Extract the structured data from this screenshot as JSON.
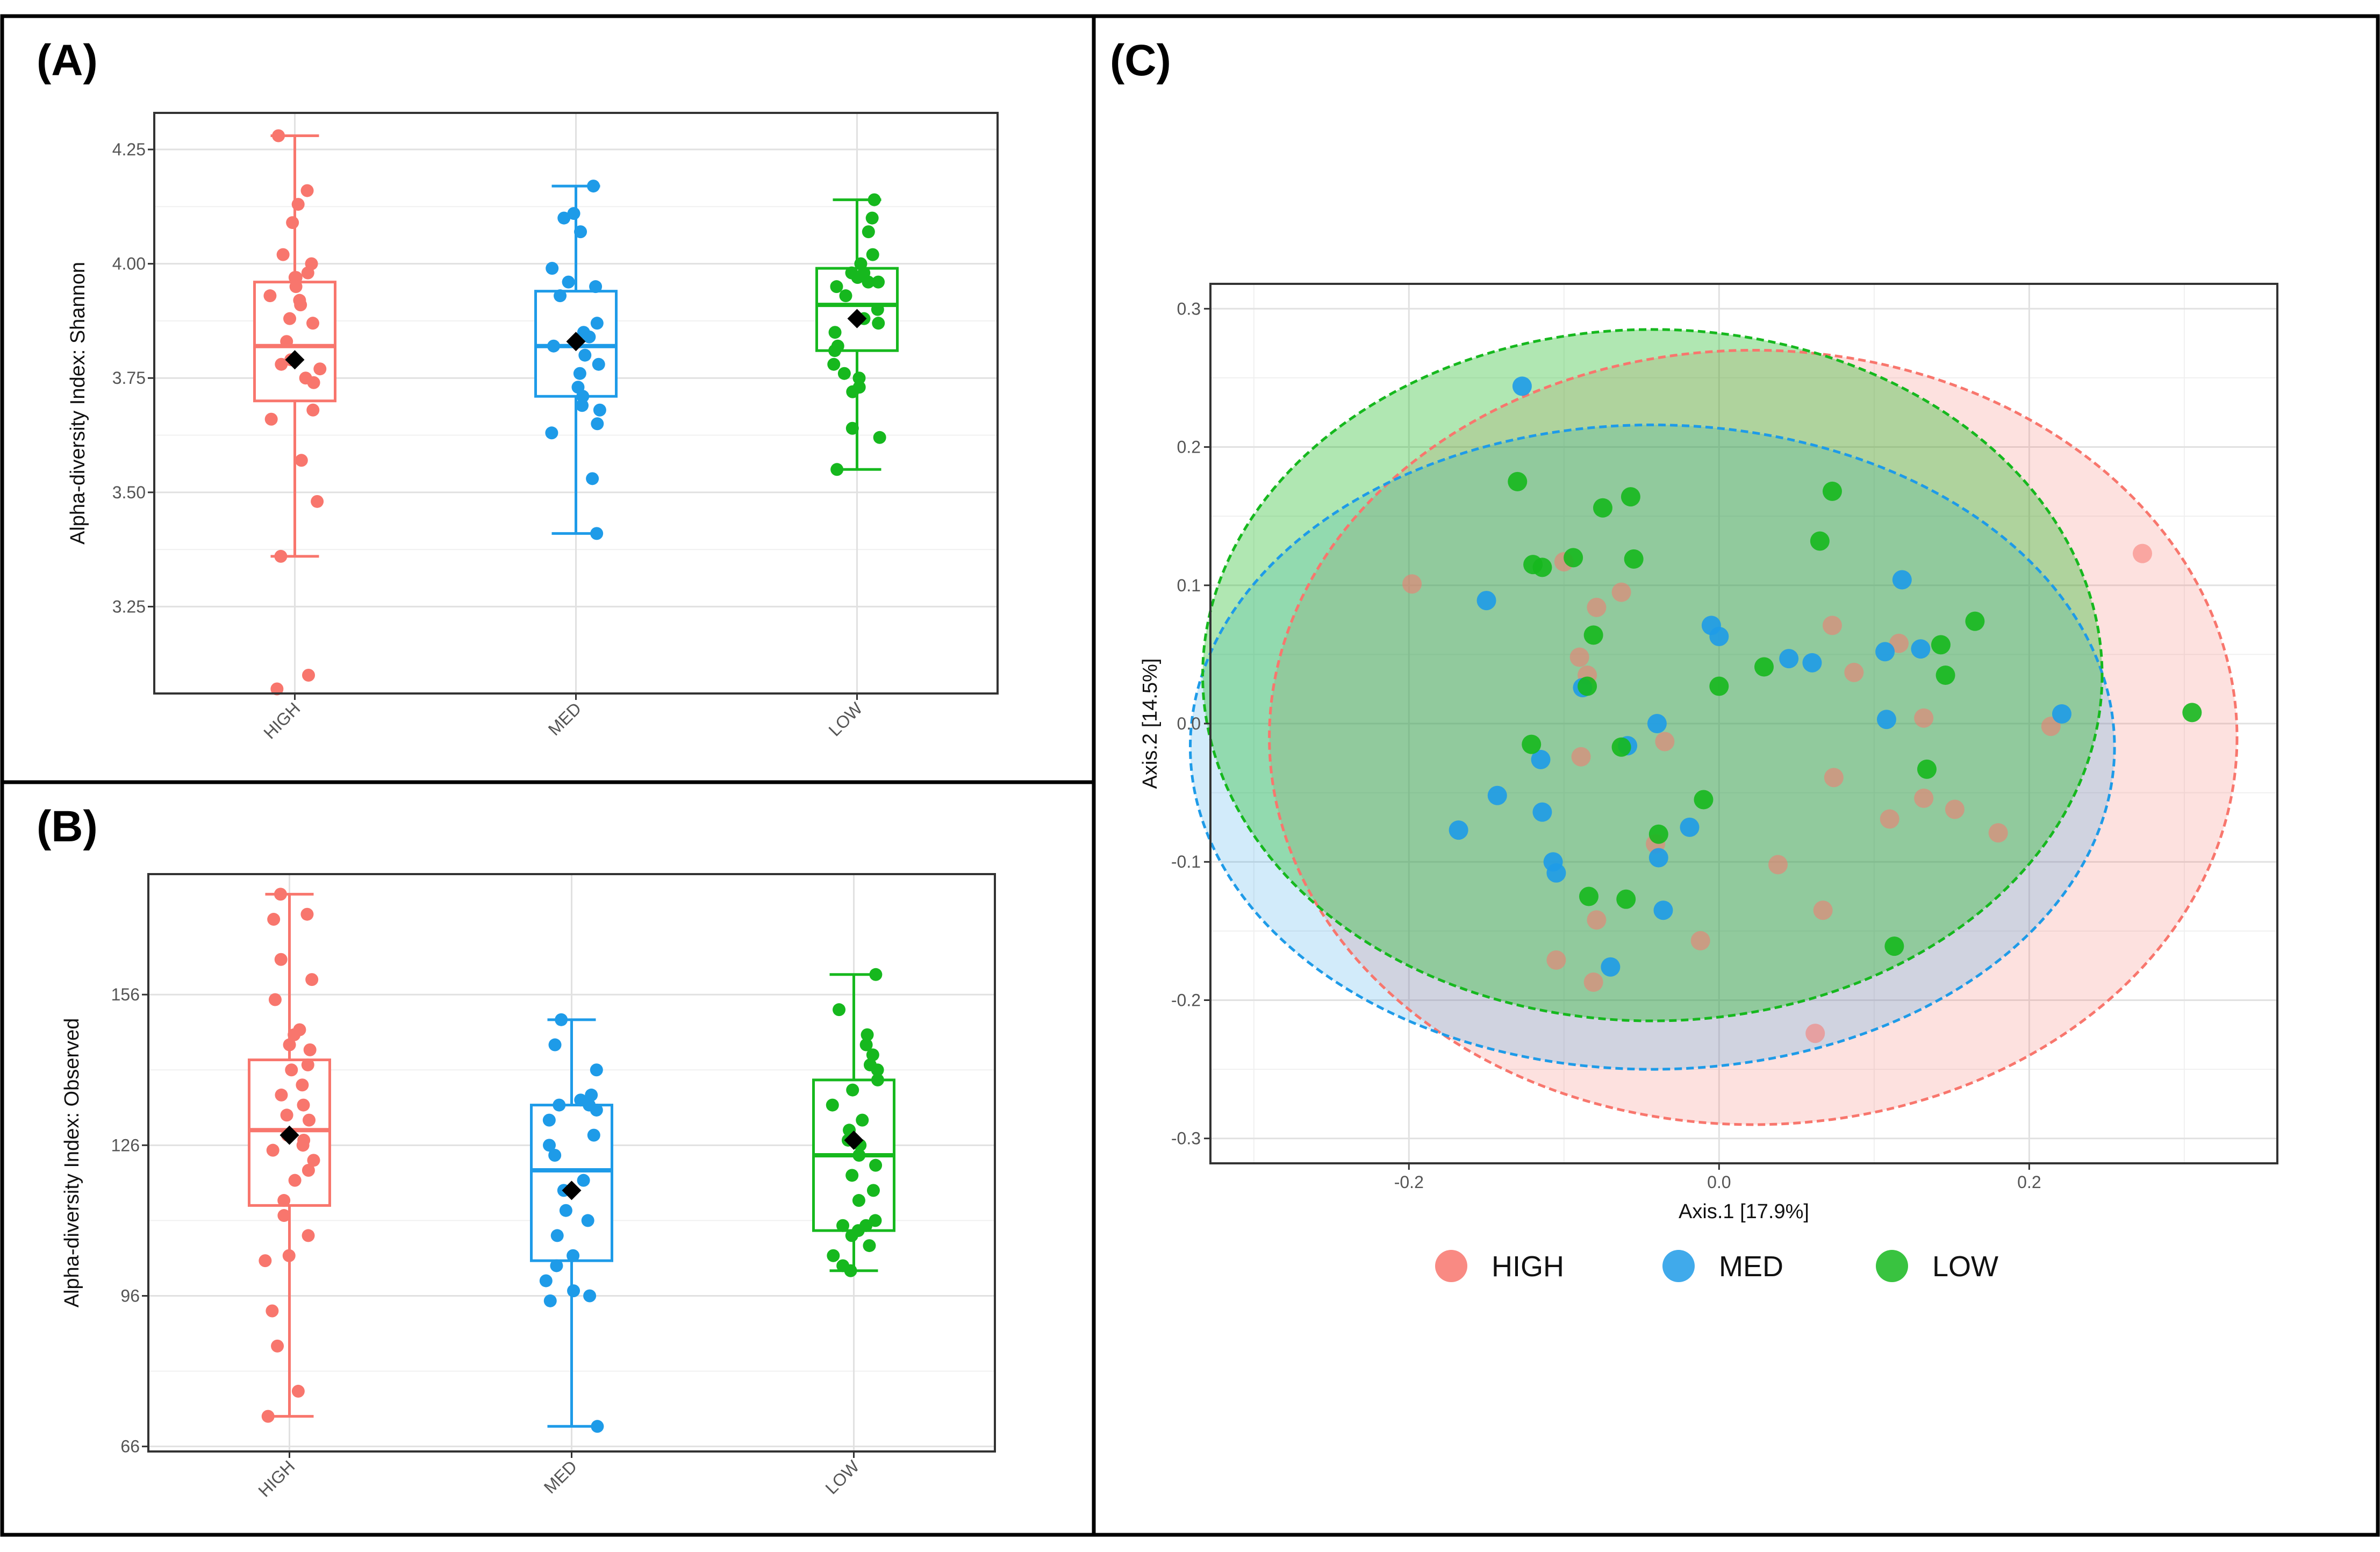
{
  "panels": {
    "a": "(A)",
    "b": "(B)",
    "c": "(C)"
  },
  "colors": {
    "high": "#F8766D",
    "med": "#1E9BE8",
    "low": "#16B81E",
    "mean_marker": "#000000"
  },
  "chart_data": [
    {
      "id": "A",
      "type": "box",
      "ylabel": "Alpha-diversity Index: Shannon",
      "ylim": [
        3.06,
        4.33
      ],
      "yticks": [
        3.25,
        3.5,
        3.75,
        4.0,
        4.25
      ],
      "ytick_labels": [
        "3.25",
        "3.50",
        "3.75",
        "4.00",
        "4.25"
      ],
      "categories": [
        "HIGH",
        "MED",
        "LOW"
      ],
      "series": [
        {
          "name": "HIGH",
          "color_key": "high",
          "q1": 3.7,
          "median": 3.82,
          "q3": 3.96,
          "whisker_low": 3.36,
          "whisker_high": 4.28,
          "mean": 3.79,
          "points": [
            4.28,
            4.16,
            4.13,
            4.09,
            4.02,
            4.0,
            3.98,
            3.97,
            3.97,
            3.95,
            3.93,
            3.92,
            3.91,
            3.88,
            3.87,
            3.83,
            3.79,
            3.78,
            3.77,
            3.75,
            3.74,
            3.68,
            3.66,
            3.57,
            3.48,
            3.36,
            3.1,
            3.07
          ]
        },
        {
          "name": "MED",
          "color_key": "med",
          "q1": 3.71,
          "median": 3.82,
          "q3": 3.94,
          "whisker_low": 3.41,
          "whisker_high": 4.17,
          "mean": 3.83,
          "points": [
            4.17,
            4.11,
            4.1,
            4.07,
            3.99,
            3.96,
            3.95,
            3.93,
            3.87,
            3.85,
            3.84,
            3.82,
            3.8,
            3.78,
            3.76,
            3.73,
            3.71,
            3.69,
            3.68,
            3.65,
            3.63,
            3.53,
            3.41
          ]
        },
        {
          "name": "LOW",
          "color_key": "low",
          "q1": 3.81,
          "median": 3.91,
          "q3": 3.99,
          "whisker_low": 3.55,
          "whisker_high": 4.14,
          "mean": 3.88,
          "points": [
            4.14,
            4.1,
            4.07,
            4.02,
            4.0,
            3.98,
            3.98,
            3.97,
            3.96,
            3.96,
            3.95,
            3.93,
            3.9,
            3.88,
            3.87,
            3.85,
            3.82,
            3.81,
            3.78,
            3.76,
            3.75,
            3.73,
            3.72,
            3.64,
            3.62,
            3.55
          ]
        }
      ]
    },
    {
      "id": "B",
      "type": "box",
      "ylabel": "Alpha-diversity Index: Observed",
      "ylim": [
        65,
        180
      ],
      "yticks": [
        66,
        96,
        126,
        156
      ],
      "ytick_labels": [
        "66",
        "96",
        "126",
        "156"
      ],
      "categories": [
        "HIGH",
        "MED",
        "LOW"
      ],
      "series": [
        {
          "name": "HIGH",
          "color_key": "high",
          "q1": 114,
          "median": 129,
          "q3": 143,
          "whisker_low": 72,
          "whisker_high": 176,
          "mean": 128,
          "points": [
            176,
            172,
            171,
            163,
            159,
            155,
            149,
            148,
            146,
            145,
            142,
            141,
            138,
            136,
            134,
            132,
            131,
            128,
            127,
            126,
            125,
            123,
            121,
            119,
            115,
            112,
            108,
            104,
            103,
            93,
            86,
            77,
            72
          ]
        },
        {
          "name": "MED",
          "color_key": "med",
          "q1": 103,
          "median": 121,
          "q3": 134,
          "whisker_low": 70,
          "whisker_high": 151,
          "mean": 117,
          "points": [
            151,
            146,
            141,
            136,
            135,
            134,
            134,
            133,
            131,
            128,
            126,
            124,
            119,
            117,
            113,
            111,
            108,
            104,
            102,
            99,
            97,
            96,
            95,
            70
          ]
        },
        {
          "name": "LOW",
          "color_key": "low",
          "q1": 109,
          "median": 124,
          "q3": 139,
          "whisker_low": 101,
          "whisker_high": 160,
          "mean": 127,
          "points": [
            160,
            153,
            148,
            146,
            144,
            142,
            141,
            139,
            137,
            134,
            131,
            129,
            127,
            126,
            124,
            122,
            120,
            117,
            115,
            111,
            110,
            110,
            109,
            108,
            106,
            104,
            102,
            101
          ]
        }
      ]
    },
    {
      "id": "C",
      "type": "scatter",
      "xlabel": "Axis.1   [17.9%]",
      "ylabel": "Axis.2   [14.5%]",
      "xlim": [
        -0.328,
        0.36
      ],
      "ylim": [
        -0.318,
        0.318
      ],
      "xticks": [
        -0.2,
        0.0,
        0.2
      ],
      "xtick_labels": [
        "-0.2",
        "0.0",
        "0.2"
      ],
      "yticks": [
        -0.3,
        -0.2,
        -0.1,
        0.0,
        0.1,
        0.2,
        0.3
      ],
      "ytick_labels": [
        "-0.3",
        "-0.2",
        "-0.1",
        "0.0",
        "0.1",
        "0.2",
        "0.3"
      ],
      "ellipses": [
        {
          "group": "HIGH",
          "color_key": "high",
          "cx": 0.022,
          "cy": -0.01,
          "rx": 0.312,
          "ry": 0.28,
          "fill_opacity": 0.22
        },
        {
          "group": "MED",
          "color_key": "med",
          "cx": -0.043,
          "cy": -0.017,
          "rx": 0.298,
          "ry": 0.233,
          "fill_opacity": 0.2
        },
        {
          "group": "LOW",
          "color_key": "low",
          "cx": -0.043,
          "cy": 0.035,
          "rx": 0.29,
          "ry": 0.25,
          "fill_opacity": 0.34
        }
      ],
      "series": [
        {
          "name": "HIGH",
          "color_key": "high",
          "points": [
            [
              0.273,
              0.123
            ],
            [
              -0.198,
              0.101
            ],
            [
              -0.1,
              0.117
            ],
            [
              -0.063,
              0.095
            ],
            [
              -0.079,
              0.084
            ],
            [
              0.073,
              0.071
            ],
            [
              0.116,
              0.058
            ],
            [
              -0.09,
              0.048
            ],
            [
              -0.085,
              0.035
            ],
            [
              0.087,
              0.037
            ],
            [
              0.132,
              0.004
            ],
            [
              0.214,
              -0.002
            ],
            [
              -0.035,
              -0.013
            ],
            [
              -0.089,
              -0.024
            ],
            [
              0.074,
              -0.039
            ],
            [
              0.132,
              -0.054
            ],
            [
              0.11,
              -0.069
            ],
            [
              0.152,
              -0.062
            ],
            [
              0.18,
              -0.079
            ],
            [
              -0.041,
              -0.087
            ],
            [
              0.038,
              -0.102
            ],
            [
              0.067,
              -0.135
            ],
            [
              -0.079,
              -0.142
            ],
            [
              -0.012,
              -0.157
            ],
            [
              -0.105,
              -0.171
            ],
            [
              -0.081,
              -0.187
            ],
            [
              0.062,
              -0.224
            ]
          ]
        },
        {
          "name": "MED",
          "color_key": "med",
          "points": [
            [
              -0.127,
              0.244
            ],
            [
              0.118,
              0.104
            ],
            [
              -0.15,
              0.089
            ],
            [
              -0.005,
              0.071
            ],
            [
              0.0,
              0.063
            ],
            [
              0.045,
              0.047
            ],
            [
              0.06,
              0.044
            ],
            [
              0.107,
              0.052
            ],
            [
              0.13,
              0.054
            ],
            [
              -0.088,
              0.026
            ],
            [
              -0.04,
              0.0
            ],
            [
              0.108,
              0.003
            ],
            [
              0.221,
              0.007
            ],
            [
              -0.115,
              -0.026
            ],
            [
              -0.059,
              -0.016
            ],
            [
              -0.143,
              -0.052
            ],
            [
              -0.114,
              -0.064
            ],
            [
              -0.168,
              -0.077
            ],
            [
              -0.019,
              -0.075
            ],
            [
              -0.039,
              -0.097
            ],
            [
              -0.107,
              -0.1
            ],
            [
              -0.105,
              -0.108
            ],
            [
              -0.036,
              -0.135
            ],
            [
              -0.07,
              -0.176
            ]
          ]
        },
        {
          "name": "LOW",
          "color_key": "low",
          "points": [
            [
              -0.13,
              0.175
            ],
            [
              0.073,
              0.168
            ],
            [
              -0.057,
              0.164
            ],
            [
              -0.075,
              0.156
            ],
            [
              0.065,
              0.132
            ],
            [
              -0.055,
              0.119
            ],
            [
              -0.094,
              0.12
            ],
            [
              -0.12,
              0.115
            ],
            [
              -0.114,
              0.113
            ],
            [
              0.165,
              0.074
            ],
            [
              -0.081,
              0.064
            ],
            [
              0.143,
              0.057
            ],
            [
              0.146,
              0.035
            ],
            [
              -0.085,
              0.027
            ],
            [
              0.0,
              0.027
            ],
            [
              0.029,
              0.041
            ],
            [
              -0.121,
              -0.015
            ],
            [
              -0.063,
              -0.017
            ],
            [
              0.134,
              -0.033
            ],
            [
              -0.01,
              -0.055
            ],
            [
              -0.039,
              -0.08
            ],
            [
              -0.084,
              -0.125
            ],
            [
              -0.06,
              -0.127
            ],
            [
              0.113,
              -0.161
            ],
            [
              0.305,
              0.008
            ]
          ]
        }
      ],
      "legend": [
        {
          "label": "HIGH",
          "color_key": "high"
        },
        {
          "label": "MED",
          "color_key": "med"
        },
        {
          "label": "LOW",
          "color_key": "low"
        }
      ]
    }
  ]
}
